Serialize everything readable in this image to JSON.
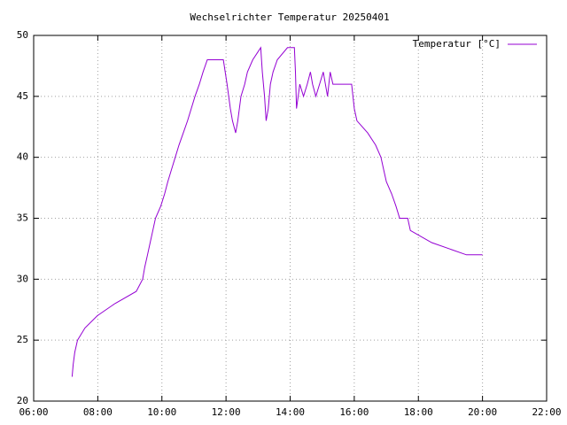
{
  "chart_data": {
    "type": "line",
    "title": "Wechselrichter Temperatur 20250401",
    "x": [
      "07:12",
      "07:14",
      "07:17",
      "07:22",
      "07:36",
      "07:59",
      "08:32",
      "09:12",
      "09:24",
      "09:28",
      "09:33",
      "09:38",
      "09:43",
      "09:48",
      "09:58",
      "10:05",
      "10:11",
      "10:18",
      "10:25",
      "10:32",
      "10:40",
      "10:48",
      "10:55",
      "11:02",
      "11:10",
      "11:17",
      "11:25",
      "11:55",
      "12:02",
      "12:08",
      "12:12",
      "12:18",
      "12:22",
      "12:28",
      "12:35",
      "12:40",
      "12:50",
      "13:05",
      "13:08",
      "13:12",
      "13:15",
      "13:19",
      "13:23",
      "13:28",
      "13:36",
      "13:55",
      "14:08",
      "14:10",
      "14:12",
      "14:18",
      "14:25",
      "14:32",
      "14:38",
      "14:42",
      "14:48",
      "14:55",
      "15:02",
      "15:10",
      "15:15",
      "15:20",
      "15:55",
      "16:00",
      "16:05",
      "16:25",
      "16:40",
      "16:50",
      "16:55",
      "17:00",
      "17:10",
      "17:18",
      "17:25",
      "17:40",
      "17:45",
      "18:25",
      "19:30",
      "19:40",
      "20:00"
    ],
    "series": [
      {
        "name": "Temperatur [°C]",
        "color": "#9400d3",
        "values": [
          22,
          23,
          24,
          25,
          26,
          27,
          28,
          29,
          30,
          31,
          32,
          33,
          34,
          35,
          36,
          37,
          38,
          39,
          40,
          41,
          42,
          43,
          44,
          45,
          46,
          47,
          48,
          48,
          46,
          44,
          43,
          42,
          43,
          45,
          46,
          47,
          48,
          49,
          47,
          45,
          43,
          44,
          46,
          47,
          48,
          49,
          49,
          47,
          44,
          46,
          45,
          46,
          47,
          46,
          45,
          46,
          47,
          45,
          47,
          46,
          46,
          44,
          43,
          42,
          41,
          40,
          39,
          38,
          37,
          36,
          35,
          35,
          34,
          33,
          32,
          32,
          32
        ]
      }
    ],
    "xlim": [
      "06:00",
      "22:00"
    ],
    "xticks": [
      "06:00",
      "08:00",
      "10:00",
      "12:00",
      "14:00",
      "16:00",
      "18:00",
      "20:00",
      "22:00"
    ],
    "ylim": [
      20,
      50
    ],
    "yticks": [
      20,
      25,
      30,
      35,
      40,
      45,
      50
    ],
    "grid": true,
    "legend": "top-right"
  }
}
